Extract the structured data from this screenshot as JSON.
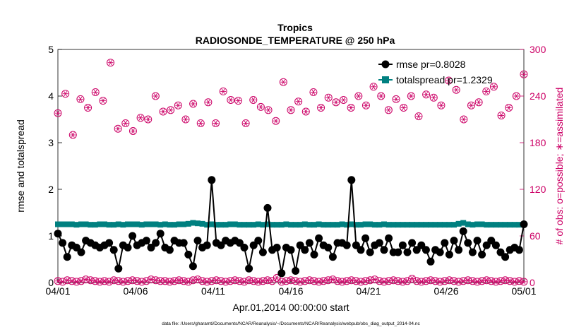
{
  "chart_data": {
    "type": "line",
    "title": "Tropics",
    "subtitle": "RADIOSONDE_TEMPERATURE @ 250 hPa",
    "xlabel": "Apr.01,2014 00:00:00 start",
    "ylabel": "rmse and totalspread",
    "y2label": "# of obs: o=possible; ∗=assimilated",
    "footnote": "data file: /Users/gharamti/Documents/NCAR/Reanalysis/~/Documents/NCAR/Reanalysis/webpub/obs_diag_output_2014-04.nc",
    "x_ticks": [
      "04/01",
      "04/06",
      "04/11",
      "04/16",
      "04/21",
      "04/26",
      "05/01"
    ],
    "y_ticks": [
      "0",
      "1",
      "2",
      "3",
      "4",
      "5"
    ],
    "y2_ticks": [
      "0",
      "60",
      "120",
      "180",
      "240",
      "300"
    ],
    "xlim": [
      0,
      30
    ],
    "ylim": [
      0,
      5
    ],
    "y2lim": [
      0,
      300
    ],
    "legend": {
      "position": "top-right",
      "items": [
        "rmse pr=0.8028",
        "totalspread pr=1.2329"
      ]
    },
    "colors": {
      "rmse": "#000000",
      "totalspread": "#008080",
      "obs": "#cc0066",
      "axis": "#000000",
      "right_axis": "#cc0066"
    },
    "series": [
      {
        "name": "rmse",
        "axis": "left",
        "values": [
          1.05,
          0.85,
          0.55,
          0.8,
          0.75,
          0.65,
          0.9,
          0.85,
          0.8,
          0.75,
          0.8,
          0.85,
          0.7,
          0.3,
          0.8,
          0.75,
          1.0,
          0.8,
          0.85,
          0.9,
          0.75,
          0.85,
          1.05,
          0.75,
          0.7,
          0.9,
          0.85,
          0.85,
          0.6,
          0.35,
          0.9,
          0.75,
          0.8,
          2.2,
          0.85,
          0.8,
          0.9,
          0.85,
          0.9,
          0.85,
          0.75,
          0.3,
          0.8,
          0.9,
          0.65,
          1.6,
          0.7,
          0.75,
          0.2,
          0.75,
          0.7,
          0.25,
          0.8,
          0.7,
          0.85,
          0.6,
          0.95,
          0.8,
          0.75,
          0.55,
          0.85,
          0.85,
          0.8,
          2.2,
          0.8,
          0.7,
          0.95,
          0.65,
          0.8,
          0.85,
          0.7,
          0.95,
          0.65,
          0.65,
          0.8,
          0.65,
          0.85,
          0.7,
          0.8,
          0.7,
          0.45,
          0.7,
          0.65,
          0.85,
          0.6,
          0.9,
          0.7,
          1.1,
          0.85,
          0.65,
          0.9,
          0.6,
          0.8,
          0.9,
          0.8,
          0.65,
          0.55,
          0.7,
          0.75,
          0.7,
          1.25
        ]
      },
      {
        "name": "totalspread",
        "axis": "left",
        "values": [
          1.25,
          1.25,
          1.25,
          1.25,
          1.24,
          1.25,
          1.25,
          1.24,
          1.24,
          1.25,
          1.25,
          1.24,
          1.24,
          1.25,
          1.24,
          1.25,
          1.25,
          1.25,
          1.24,
          1.25,
          1.25,
          1.25,
          1.24,
          1.25,
          1.24,
          1.24,
          1.25,
          1.25,
          1.26,
          1.28,
          1.27,
          1.26,
          1.24,
          1.25,
          1.24,
          1.24,
          1.24,
          1.25,
          1.25,
          1.24,
          1.24,
          1.24,
          1.24,
          1.25,
          1.24,
          1.25,
          1.24,
          1.24,
          1.24,
          1.25,
          1.24,
          1.24,
          1.24,
          1.25,
          1.24,
          1.24,
          1.25,
          1.24,
          1.24,
          1.24,
          1.24,
          1.25,
          1.24,
          1.25,
          1.24,
          1.24,
          1.25,
          1.25,
          1.24,
          1.24,
          1.25,
          1.24,
          1.24,
          1.24,
          1.24,
          1.24,
          1.24,
          1.24,
          1.24,
          1.24,
          1.24,
          1.24,
          1.24,
          1.24,
          1.24,
          1.24,
          1.26,
          1.28,
          1.25,
          1.24,
          1.25,
          1.25,
          1.24,
          1.24,
          1.24,
          1.24,
          1.24,
          1.24,
          1.24,
          1.24,
          1.25
        ]
      },
      {
        "name": "possible_obs",
        "axis": "right",
        "values": [
          218,
          243,
          190,
          236,
          225,
          245,
          234,
          283,
          198,
          205,
          195,
          212,
          210,
          240,
          220,
          222,
          228,
          210,
          230,
          205,
          232,
          205,
          246,
          235,
          234,
          205,
          235,
          226,
          222,
          208,
          258,
          222,
          233,
          220,
          245,
          225,
          238,
          232,
          235,
          225,
          240,
          228,
          252,
          240,
          222,
          236,
          225,
          240,
          214,
          242,
          238,
          228,
          260,
          248,
          210,
          228,
          232,
          246,
          252,
          215,
          225,
          240,
          268
        ]
      },
      {
        "name": "possible_obs_low",
        "axis": "right",
        "values": [
          2,
          1,
          3,
          2,
          1,
          2,
          4,
          3,
          2,
          1,
          2,
          1,
          3,
          2,
          1,
          2,
          3,
          2,
          1,
          2,
          4,
          3,
          2,
          2,
          1,
          2,
          3,
          2,
          1,
          3,
          4,
          2,
          1,
          2,
          3,
          2,
          1,
          2,
          3,
          2,
          1,
          3,
          2,
          1,
          2,
          3,
          2,
          6,
          1,
          2,
          3,
          2,
          1,
          2,
          3,
          2,
          1,
          2,
          3,
          4,
          2,
          1,
          2,
          3,
          2,
          1,
          2,
          3,
          4,
          2,
          1,
          2,
          3,
          2,
          1,
          2,
          5,
          2,
          1,
          2,
          3,
          2,
          1,
          2,
          3,
          2,
          1,
          2,
          3,
          2,
          1,
          2,
          3,
          2,
          1,
          2,
          3,
          2,
          1,
          2,
          1
        ]
      }
    ]
  }
}
